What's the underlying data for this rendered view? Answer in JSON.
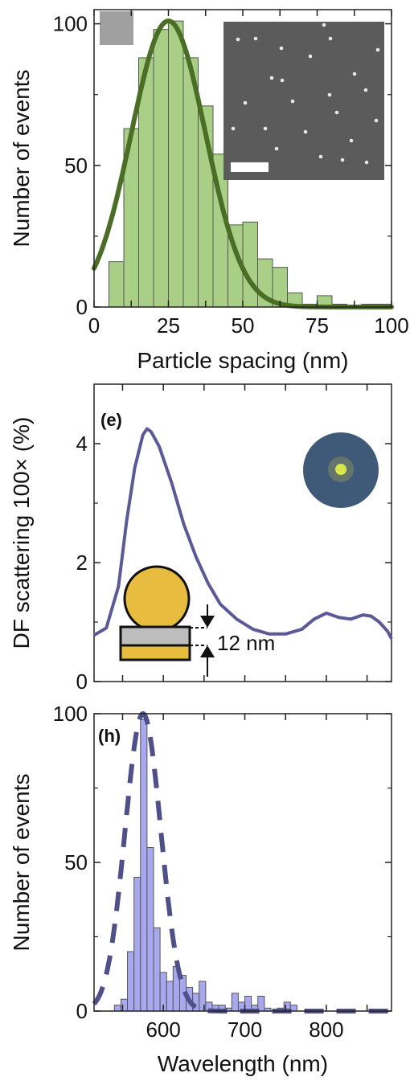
{
  "chart_data": [
    {
      "type": "bar",
      "panel_label": "",
      "xlabel": "Particle spacing (nm)",
      "ylabel": "Number of events",
      "xlim": [
        0,
        100
      ],
      "ylim": [
        0,
        105
      ],
      "xticks": [
        0,
        25,
        50,
        75,
        100
      ],
      "yticks": [
        0,
        50,
        100
      ],
      "bin_width": 5,
      "bin_starts": [
        5,
        10,
        15,
        20,
        25,
        30,
        35,
        40,
        45,
        50,
        55,
        60,
        65,
        70,
        75,
        80,
        85,
        90,
        95
      ],
      "values": [
        16,
        63,
        88,
        98,
        101,
        88,
        71,
        54,
        29,
        30,
        17,
        14,
        5,
        1,
        4,
        1,
        0,
        1,
        1
      ],
      "bar_color": "#a9cf86",
      "fit": {
        "type": "gaussian",
        "amplitude": 101,
        "center": 25,
        "sigma": 12.5,
        "color": "#4a6e26"
      },
      "inset": "SEM image of nanoparticles with white scale bar"
    },
    {
      "type": "line",
      "panel_label": "(e)",
      "xlabel": "",
      "ylabel": "DF scattering 100× (%)",
      "xlim": [
        515,
        880
      ],
      "ylim": [
        0,
        5
      ],
      "yticks": [
        0,
        2,
        4
      ],
      "color": "#5c5a96",
      "x": [
        515,
        530,
        545,
        555,
        565,
        575,
        580,
        585,
        595,
        610,
        625,
        640,
        655,
        670,
        690,
        710,
        730,
        750,
        770,
        785,
        800,
        815,
        830,
        845,
        855,
        865,
        875,
        880
      ],
      "y": [
        0.78,
        0.9,
        1.6,
        2.7,
        3.6,
        4.15,
        4.25,
        4.2,
        3.95,
        3.35,
        2.65,
        2.1,
        1.65,
        1.3,
        1.05,
        0.88,
        0.8,
        0.8,
        0.88,
        1.05,
        1.15,
        1.08,
        1.05,
        1.12,
        1.1,
        1.0,
        0.85,
        0.72
      ],
      "annotation": "12 nm"
    },
    {
      "type": "bar",
      "panel_label": "(h)",
      "xlabel": "Wavelength (nm)",
      "ylabel": "Number of events",
      "xlim": [
        515,
        880
      ],
      "ylim": [
        0,
        100
      ],
      "xticks": [
        600,
        700,
        800
      ],
      "yticks": [
        0,
        50,
        100
      ],
      "bin_width": 8,
      "bin_starts": [
        540,
        548,
        556,
        564,
        572,
        580,
        588,
        596,
        604,
        612,
        620,
        628,
        636,
        644,
        652,
        660,
        668,
        676,
        684,
        692,
        700,
        708,
        716,
        724,
        732,
        740,
        748,
        756
      ],
      "values": [
        2,
        4,
        20,
        45,
        98,
        55,
        28,
        13,
        10,
        15,
        12,
        8,
        6,
        10,
        3,
        2,
        2,
        1,
        6,
        3,
        5,
        2,
        5,
        1,
        0,
        1,
        3,
        2
      ],
      "bar_color": "#a8a8ef",
      "fit": {
        "type": "gaussian",
        "amplitude": 100,
        "center": 575,
        "sigma": 22,
        "color": "#4f4f8a",
        "dashed": true
      }
    }
  ]
}
